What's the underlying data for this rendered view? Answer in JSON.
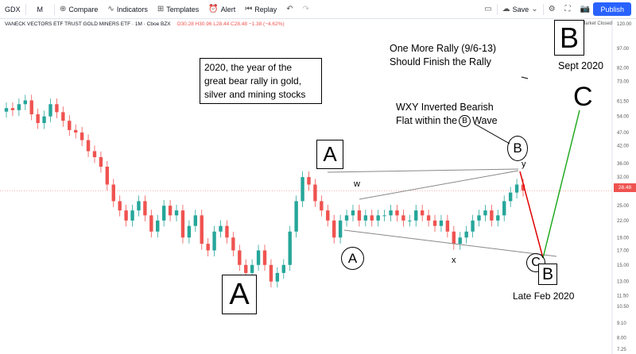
{
  "toolbar": {
    "symbol": "GDX",
    "interval": "M",
    "compare": "Compare",
    "indicators": "Indicators",
    "templates": "Templates",
    "alert": "Alert",
    "replay": "Replay",
    "save": "Save",
    "publish": "Publish"
  },
  "legend": {
    "title": "VANECK VECTORS ETF TRUST GOLD MINERS ETF · 1M · Cboe BZX",
    "ohlc": "O30.28  H30.96  L28.44  C28.48  −1.38 (−4.62%)",
    "market_status": "Market Closed"
  },
  "annotations": {
    "note_box": [
      "2020, the year of the",
      "great bear rally in gold,",
      "silver and mining stocks"
    ],
    "rally_text": [
      "One More Rally (9/6-13)",
      "Should Finish the Rally"
    ],
    "big_b": "B",
    "sept_label": "Sept 2020",
    "wxy_text": [
      "WXY Inverted Bearish",
      "Flat within the",
      "Wave"
    ],
    "circle_b_inline": "B",
    "label_a_small": "A",
    "label_a_large": "A",
    "label_a_circle": "A",
    "label_w": "w",
    "label_x": "x",
    "label_y": "y",
    "label_b_circle": "B",
    "label_c_circle": "C",
    "label_b_box": "B",
    "label_c_big": "C",
    "late_feb": "Late Feb 2020"
  },
  "price_axis": {
    "ticks": [
      "120.00",
      "97.00",
      "82.00",
      "73.00",
      "61.50",
      "54.00",
      "47.00",
      "42.00",
      "36.00",
      "32.00",
      "25.00",
      "22.00",
      "19.00",
      "17.00",
      "15.00",
      "13.00",
      "11.50",
      "10.50",
      "9.10",
      "8.00",
      "7.25"
    ],
    "current_price": "28.48",
    "current_color": "#ef5350"
  },
  "colors": {
    "up": "#26a69a",
    "down": "#ef5350",
    "red_line": "#e00000",
    "green_line": "#22aa22"
  },
  "chart_data": {
    "type": "candlestick",
    "series_close_approx": [
      58,
      57,
      60,
      62,
      55,
      51,
      54,
      60,
      56,
      52,
      48,
      47,
      44,
      40,
      38,
      35,
      30,
      26,
      24,
      22,
      24,
      26,
      23,
      20,
      22,
      25,
      23,
      24,
      19,
      21,
      23,
      18,
      17,
      20,
      21,
      19,
      17,
      15,
      14,
      15,
      17,
      15,
      13,
      14,
      15,
      20,
      26,
      32,
      30,
      26,
      24,
      22,
      19,
      22,
      23,
      24,
      22,
      23,
      22,
      23,
      23,
      24,
      23,
      22,
      22,
      24,
      23,
      22,
      21,
      22,
      20,
      18,
      19,
      20,
      22,
      23,
      24,
      22,
      23,
      26,
      28,
      30,
      28.48
    ],
    "projection": {
      "label_points": [
        "B (top)",
        "C (late Feb 2020)",
        "C (Sept 2020 target)"
      ],
      "values": [
        31,
        15,
        54
      ]
    },
    "yscale": "log",
    "ylim": [
      7.25,
      120
    ]
  }
}
